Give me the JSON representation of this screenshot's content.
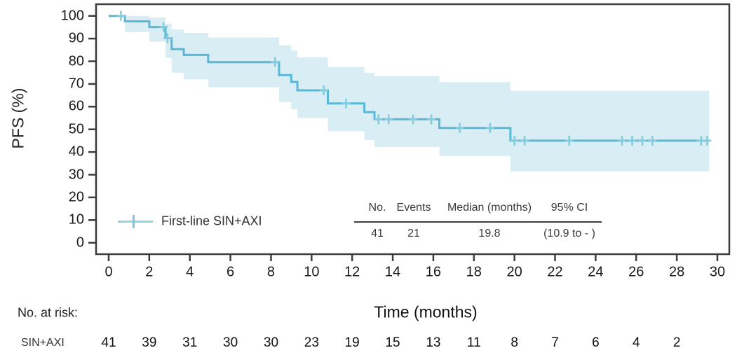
{
  "chart_data": {
    "type": "line",
    "subtype": "kaplan-meier-step-with-ci",
    "title": "",
    "xlabel": "Time (months)",
    "ylabel": "PFS (%)",
    "xlim": [
      0,
      30
    ],
    "ylim": [
      0,
      100
    ],
    "grid": false,
    "x_ticks": [
      0,
      2,
      4,
      6,
      8,
      10,
      12,
      14,
      16,
      18,
      20,
      22,
      24,
      26,
      28,
      30
    ],
    "y_ticks": [
      100,
      90,
      80,
      70,
      60,
      50,
      40,
      30,
      20,
      10,
      0
    ],
    "legend_position": "inside-lower-left",
    "series": [
      {
        "name": "First-line SIN+AXI",
        "color": "#58b8d5",
        "censor_color": "#85ccdf",
        "ci_fill": "#d9edf5",
        "steps": [
          [
            0,
            100
          ],
          [
            0.8,
            97.6
          ],
          [
            2.0,
            95.1
          ],
          [
            2.8,
            90.2
          ],
          [
            3.1,
            85.3
          ],
          [
            3.7,
            82.8
          ],
          [
            4.9,
            79.6
          ],
          [
            8.4,
            73.9
          ],
          [
            9.0,
            70.9
          ],
          [
            9.3,
            67.2
          ],
          [
            10.8,
            61.4
          ],
          [
            12.6,
            57.6
          ],
          [
            13.1,
            54.4
          ],
          [
            16.3,
            50.6
          ],
          [
            19.8,
            45.0
          ]
        ],
        "end_time": 29.6,
        "censors": [
          [
            0.6,
            100
          ],
          [
            2.7,
            95.1
          ],
          [
            2.9,
            90.2
          ],
          [
            8.2,
            79.6
          ],
          [
            10.6,
            67.2
          ],
          [
            11.7,
            61.4
          ],
          [
            13.3,
            54.4
          ],
          [
            13.8,
            54.4
          ],
          [
            15.0,
            54.4
          ],
          [
            15.9,
            54.4
          ],
          [
            17.3,
            50.6
          ],
          [
            18.8,
            50.6
          ],
          [
            20.0,
            45.0
          ],
          [
            20.5,
            45.0
          ],
          [
            22.7,
            45.0
          ],
          [
            25.3,
            45.0
          ],
          [
            25.8,
            45.0
          ],
          [
            26.3,
            45.0
          ],
          [
            26.8,
            45.0
          ],
          [
            29.2,
            45.0
          ],
          [
            29.5,
            45.0
          ]
        ],
        "ci_steps": [
          [
            0.8,
            92.9,
            100
          ],
          [
            2.0,
            88.6,
            99.3
          ],
          [
            2.8,
            81.5,
            96.6
          ],
          [
            3.1,
            75.0,
            94.0
          ],
          [
            3.7,
            72.0,
            92.5
          ],
          [
            4.9,
            68.5,
            90.5
          ],
          [
            8.4,
            62.0,
            87.0
          ],
          [
            9.0,
            58.8,
            84.7
          ],
          [
            9.3,
            55.0,
            81.8
          ],
          [
            10.8,
            49.3,
            77.5
          ],
          [
            12.6,
            45.3,
            75.0
          ],
          [
            13.1,
            42.2,
            73.5
          ],
          [
            16.3,
            38.2,
            70.8
          ],
          [
            19.8,
            31.5,
            67.0
          ]
        ]
      }
    ],
    "summary_table": {
      "headers": [
        "No.",
        "Events",
        "Median (months)",
        "95% CI"
      ],
      "values": [
        "41",
        "21",
        "19.8",
        "(10.9 to - )"
      ]
    },
    "risk_table": {
      "title": "No. at risk:",
      "row_label": "SIN+AXI",
      "times": [
        0,
        2,
        4,
        6,
        8,
        10,
        12,
        14,
        16,
        18,
        20,
        22,
        24,
        26,
        28
      ],
      "values": [
        41,
        39,
        31,
        30,
        30,
        23,
        19,
        15,
        13,
        11,
        8,
        7,
        6,
        4,
        2
      ]
    },
    "colors": {
      "axis": "#3c3c3c",
      "text": "#1b1b1b"
    }
  }
}
